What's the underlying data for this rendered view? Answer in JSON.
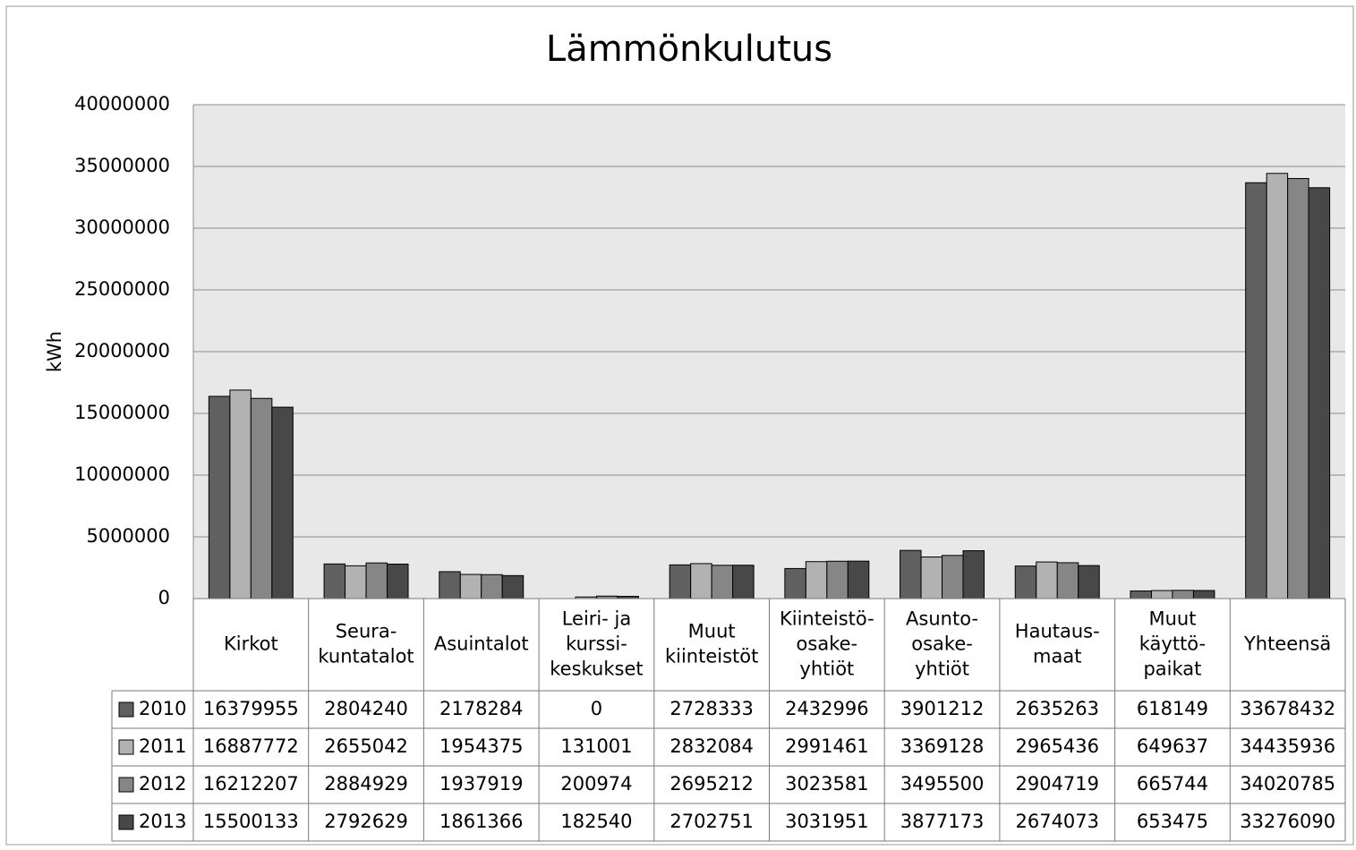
{
  "chart_data": {
    "type": "bar",
    "title": "Lämmönkulutus",
    "y_label": "kWh",
    "categories": [
      [
        "Kirkot"
      ],
      [
        "Seura-",
        "kuntatalot"
      ],
      [
        "Asuintalot"
      ],
      [
        "Leiri- ja",
        "kurssi-",
        "keskukset"
      ],
      [
        "Muut",
        "kiinteistöt"
      ],
      [
        "Kiinteistö-",
        "osake-",
        "yhtiöt"
      ],
      [
        "Asunto-",
        "osake-",
        "yhtiöt"
      ],
      [
        "Hautaus-",
        "maat"
      ],
      [
        "Muut",
        "käyttö-",
        "paikat"
      ],
      [
        "Yhteensä"
      ]
    ],
    "series": [
      {
        "name": "2010",
        "color": "#606060",
        "values": [
          16379955,
          2804240,
          2178284,
          0,
          2728333,
          2432996,
          3901212,
          2635263,
          618149,
          33678432
        ]
      },
      {
        "name": "2011",
        "color": "#b2b2b2",
        "values": [
          16887772,
          2655042,
          1954375,
          131001,
          2832084,
          2991461,
          3369128,
          2965436,
          649637,
          34435936
        ]
      },
      {
        "name": "2012",
        "color": "#868686",
        "values": [
          16212207,
          2884929,
          1937919,
          200974,
          2695212,
          3023581,
          3495500,
          2904719,
          665744,
          34020785
        ]
      },
      {
        "name": "2013",
        "color": "#484848",
        "values": [
          15500133,
          2792629,
          1861366,
          182540,
          2702751,
          3031951,
          3877173,
          2674073,
          653475,
          33276090
        ]
      }
    ],
    "ylim": [
      0,
      40000000
    ],
    "yticks": [
      0,
      5000000,
      10000000,
      15000000,
      20000000,
      25000000,
      30000000,
      35000000,
      40000000
    ],
    "grid": true
  }
}
